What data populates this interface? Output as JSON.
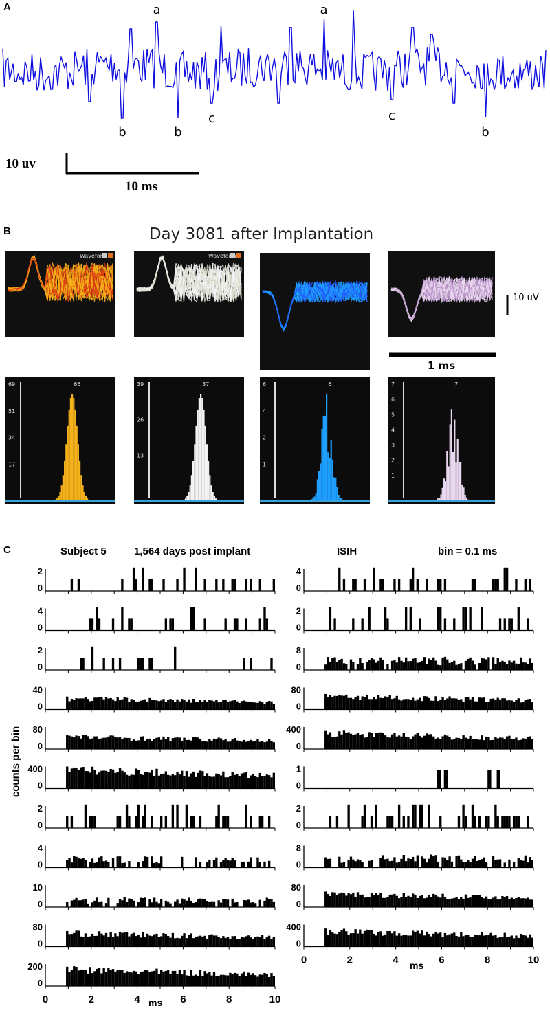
{
  "panels": {
    "a": "A",
    "b": "B",
    "c": "C"
  },
  "panel_a": {
    "peak_labels": [
      "a",
      "a"
    ],
    "trough_labels": [
      "b",
      "b",
      "c",
      "c",
      "b"
    ],
    "scale_y": "10 uv",
    "scale_x": "10 ms",
    "trace_color": "#1010e0"
  },
  "panel_b": {
    "title": "Day 3081 after Implantation",
    "waveform_tag": "Waveform",
    "scale_y": "10 uV",
    "scale_x": "1 ms",
    "units": [
      {
        "color": "#f6b21a",
        "edge": "#d83010",
        "ticks": [
          "69",
          "51",
          "34",
          "17"
        ],
        "peak_label": "66"
      },
      {
        "color": "#f2f2f2",
        "edge": "#d8d8c8",
        "ticks": [
          "39",
          "26",
          "13"
        ],
        "peak_label": "37"
      },
      {
        "color": "#1e9fff",
        "edge": "#2255ff",
        "ticks": [
          "6",
          "4",
          "2",
          "1"
        ],
        "peak_label": "6"
      },
      {
        "color": "#e9d7f0",
        "edge": "#b890c8",
        "ticks": [
          "7",
          "6",
          "5",
          "4",
          "3",
          "2",
          "1"
        ],
        "peak_label": "7"
      }
    ]
  },
  "panel_c": {
    "subject": "Subject 5",
    "days": "1,564 days post implant",
    "isih": "ISIH",
    "bin": "bin = 0.1 ms",
    "ylabel": "counts per bin",
    "xlabel": "ms"
  },
  "chart_data": [
    {
      "type": "line",
      "title": "",
      "xlabel": "",
      "ylabel": "",
      "scale_bar": {
        "y": "10 uv",
        "x": "10 ms"
      },
      "annotations": [
        "a",
        "a",
        "b",
        "b",
        "b",
        "c",
        "c"
      ]
    },
    {
      "type": "bar",
      "title": "Day 3081 after Implantation",
      "scale_bar": {
        "y": "10 uV",
        "x": "1 ms"
      },
      "units": [
        {
          "histogram_ticks": [
            17,
            34,
            51,
            69
          ],
          "peak_count": 66
        },
        {
          "histogram_ticks": [
            13,
            26,
            39
          ],
          "peak_count": 37
        },
        {
          "histogram_ticks": [
            1,
            2,
            4,
            6
          ],
          "peak_count": 6
        },
        {
          "histogram_ticks": [
            1,
            2,
            3,
            4,
            5,
            6,
            7
          ],
          "peak_count": 7
        }
      ]
    },
    {
      "type": "bar",
      "title": "ISIH",
      "subtitle": "Subject 5 1,564 days post implant",
      "bin_label": "bin = 0.1 ms",
      "xlabel": "ms",
      "ylabel": "counts per bin",
      "xlim": [
        0,
        10
      ],
      "xticks": [
        0,
        2,
        4,
        6,
        8,
        10
      ],
      "left_column": [
        {
          "ymax": 2,
          "yticks": [
            0,
            2
          ],
          "density": 0.22
        },
        {
          "ymax": 4,
          "yticks": [
            0,
            4
          ],
          "density": 0.25
        },
        {
          "ymax": 2,
          "yticks": [
            0,
            2
          ],
          "density": 0.18
        },
        {
          "ymax": 40,
          "yticks": [
            0,
            40
          ],
          "density": 1,
          "level": 0.5
        },
        {
          "ymax": 80,
          "yticks": [
            0,
            80
          ],
          "density": 1,
          "level": 0.55
        },
        {
          "ymax": 400,
          "yticks": [
            0,
            400
          ],
          "density": 1,
          "level": 0.85
        },
        {
          "ymax": 2,
          "yticks": [
            0,
            2
          ],
          "density": 0.28
        },
        {
          "ymax": 4,
          "yticks": [
            0,
            4
          ],
          "density": 0.6,
          "level": 0.35
        },
        {
          "ymax": 10,
          "yticks": [
            0,
            10
          ],
          "density": 0.8,
          "level": 0.3
        },
        {
          "ymax": 80,
          "yticks": [
            0,
            80
          ],
          "density": 1,
          "level": 0.6
        },
        {
          "ymax": 200,
          "yticks": [
            0,
            200
          ],
          "density": 1,
          "level": 0.75
        }
      ],
      "right_column": [
        {
          "ymax": 4,
          "yticks": [
            0,
            4
          ],
          "density": 0.3
        },
        {
          "ymax": 2,
          "yticks": [
            0,
            2
          ],
          "density": 0.4
        },
        {
          "ymax": 8,
          "yticks": [
            0,
            8
          ],
          "density": 0.9,
          "level": 0.4
        },
        {
          "ymax": 80,
          "yticks": [
            0,
            80
          ],
          "density": 1,
          "level": 0.6
        },
        {
          "ymax": 400,
          "yticks": [
            0,
            400
          ],
          "density": 1,
          "level": 0.7
        },
        {
          "ymax": 1,
          "yticks": [
            0,
            1
          ],
          "bars_ms": [
            5.8,
            6.1,
            8.0,
            8.4
          ]
        },
        {
          "ymax": 2,
          "yticks": [
            0,
            2
          ],
          "density": 0.35
        },
        {
          "ymax": 8,
          "yticks": [
            0,
            8
          ],
          "density": 0.85,
          "level": 0.4
        },
        {
          "ymax": 80,
          "yticks": [
            0,
            80
          ],
          "density": 1,
          "level": 0.6
        },
        {
          "ymax": 400,
          "yticks": [
            0,
            400
          ],
          "density": 1,
          "level": 0.7
        }
      ]
    }
  ]
}
